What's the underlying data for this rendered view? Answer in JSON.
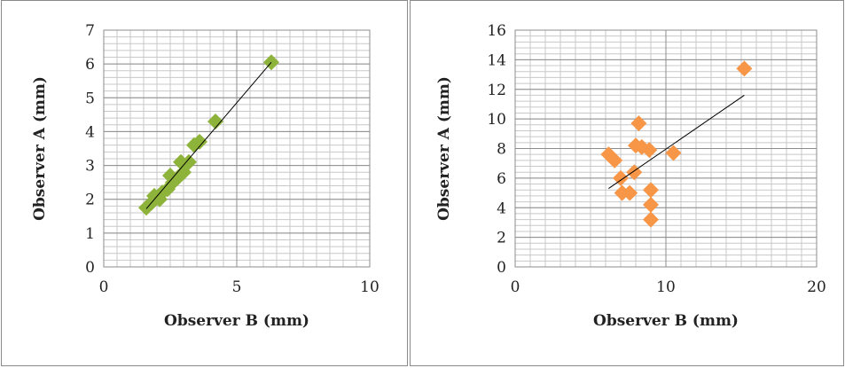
{
  "colors": {
    "left_marker": "#8db33a",
    "right_marker": "#f79646",
    "trendline": "#000000",
    "grid_major": "#8c8c8c",
    "grid_minor": "#c8c8c8"
  },
  "chart_data": [
    {
      "type": "scatter",
      "title": "",
      "xlabel": "Observer B (mm)",
      "ylabel": "Observer A (mm)",
      "xlim": [
        0,
        10
      ],
      "ylim": [
        0,
        7
      ],
      "x_major": 5,
      "x_minor": 0.5,
      "y_major": 1,
      "y_minor": 0.2,
      "grid": true,
      "marker": "diamond",
      "x_ticks": [
        "0",
        "5",
        "10"
      ],
      "y_ticks": [
        "0",
        "1",
        "2",
        "3",
        "4",
        "5",
        "6",
        "7"
      ],
      "points": [
        {
          "x": 1.6,
          "y": 1.75
        },
        {
          "x": 1.8,
          "y": 1.9
        },
        {
          "x": 1.9,
          "y": 2.1
        },
        {
          "x": 2.1,
          "y": 2.0
        },
        {
          "x": 2.2,
          "y": 2.2
        },
        {
          "x": 2.4,
          "y": 2.3
        },
        {
          "x": 2.5,
          "y": 2.7
        },
        {
          "x": 2.6,
          "y": 2.5
        },
        {
          "x": 2.8,
          "y": 2.65
        },
        {
          "x": 2.9,
          "y": 3.1
        },
        {
          "x": 3.0,
          "y": 2.8
        },
        {
          "x": 3.2,
          "y": 3.1
        },
        {
          "x": 3.4,
          "y": 3.6
        },
        {
          "x": 3.6,
          "y": 3.7
        },
        {
          "x": 4.2,
          "y": 4.3
        },
        {
          "x": 6.3,
          "y": 6.05
        }
      ],
      "trendline": {
        "x": [
          1.6,
          6.3
        ],
        "y": [
          1.72,
          6.05
        ]
      }
    },
    {
      "type": "scatter",
      "title": "",
      "xlabel": "Observer B (mm)",
      "ylabel": "Observer A (mm)",
      "xlim": [
        0,
        20
      ],
      "ylim": [
        0,
        16
      ],
      "x_major": 10,
      "x_minor": 1,
      "y_major": 2,
      "y_minor": 0.4,
      "grid": true,
      "marker": "diamond",
      "x_ticks": [
        "0",
        "10",
        "20"
      ],
      "y_ticks": [
        "0",
        "2",
        "4",
        "6",
        "8",
        "10",
        "12",
        "14",
        "16"
      ],
      "points": [
        {
          "x": 6.2,
          "y": 7.6
        },
        {
          "x": 6.6,
          "y": 7.2
        },
        {
          "x": 7.0,
          "y": 6.0
        },
        {
          "x": 7.1,
          "y": 5.0
        },
        {
          "x": 7.6,
          "y": 5.0
        },
        {
          "x": 7.9,
          "y": 6.4
        },
        {
          "x": 8.0,
          "y": 8.2
        },
        {
          "x": 8.2,
          "y": 9.7
        },
        {
          "x": 8.4,
          "y": 8.1
        },
        {
          "x": 8.9,
          "y": 7.9
        },
        {
          "x": 9.0,
          "y": 5.2
        },
        {
          "x": 9.0,
          "y": 4.2
        },
        {
          "x": 9.0,
          "y": 3.2
        },
        {
          "x": 10.5,
          "y": 7.7
        },
        {
          "x": 15.2,
          "y": 13.4
        }
      ],
      "trendline": {
        "x": [
          6.2,
          15.2
        ],
        "y": [
          5.3,
          11.6
        ]
      }
    }
  ]
}
